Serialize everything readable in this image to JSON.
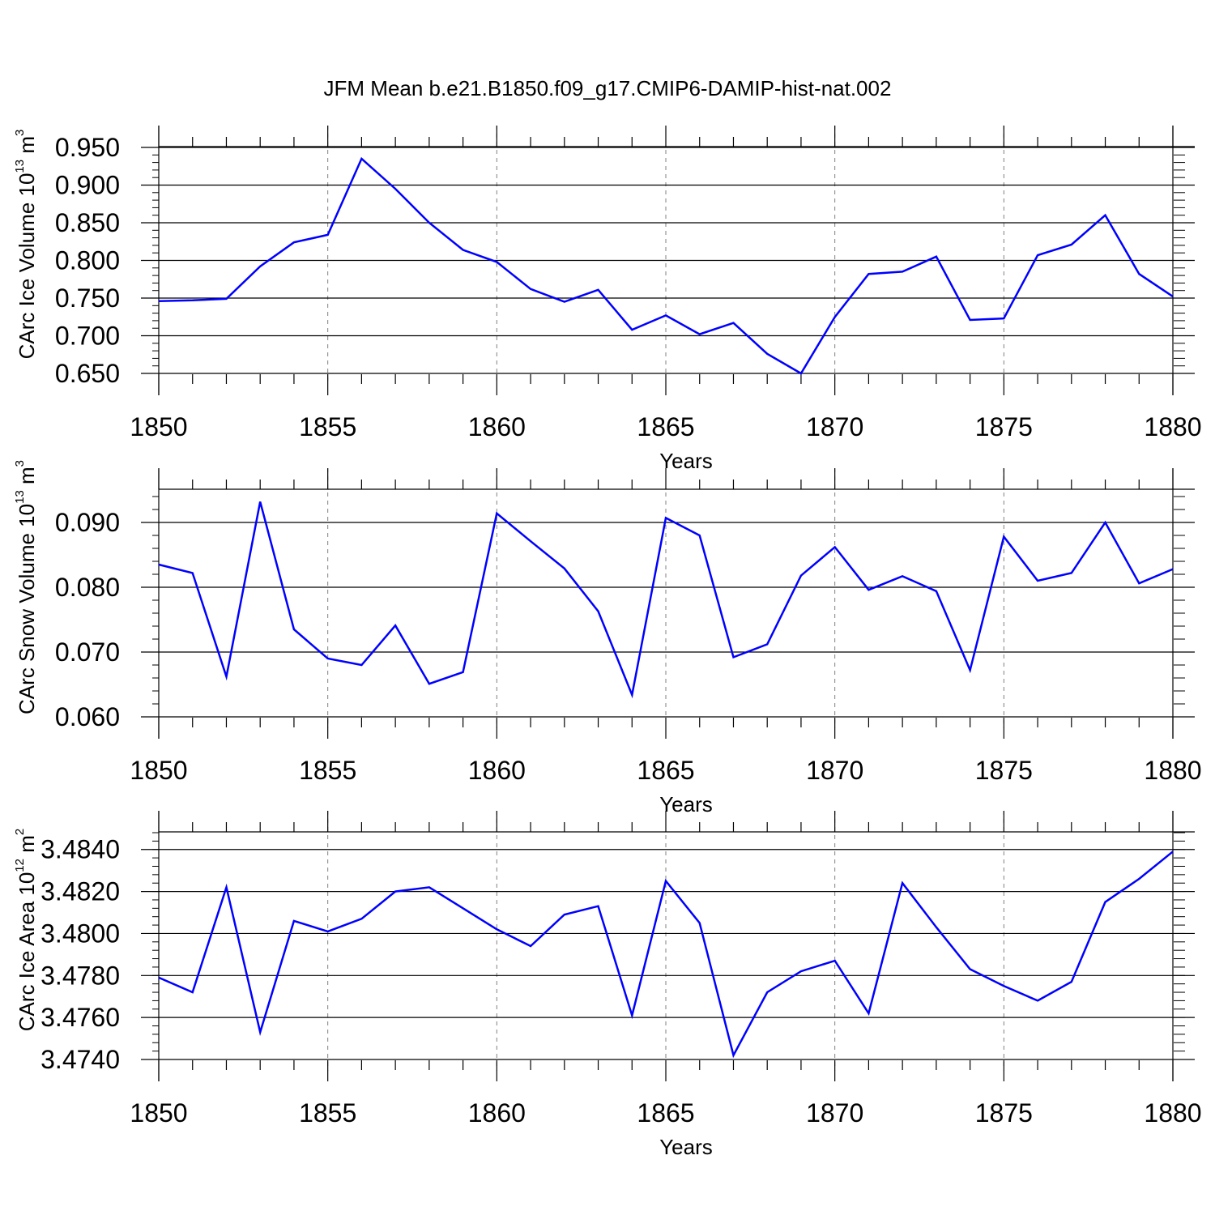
{
  "title": "JFM Mean b.e21.B1850.f09_g17.CMIP6-DAMIP-hist-nat.002",
  "colors": {
    "line": "#0000ff",
    "axis": "#000000",
    "grid": "#808080"
  },
  "chart_data": [
    {
      "type": "line",
      "name": "ice-volume",
      "ylabel": "CArc Ice Volume 10",
      "ylabel_exp": "13",
      "ylabel_unit": " m",
      "ylabel_unit_exp": "3",
      "xlabel": "Years",
      "xlim": [
        1850,
        1880
      ],
      "ylim": [
        0.65,
        0.95
      ],
      "yticks": [
        "0.650",
        "0.700",
        "0.750",
        "0.800",
        "0.850",
        "0.900",
        "0.950"
      ],
      "ytick_values": [
        0.65,
        0.7,
        0.75,
        0.8,
        0.85,
        0.9,
        0.95
      ],
      "xticks": [
        "1850",
        "1855",
        "1860",
        "1865",
        "1870",
        "1875",
        "1880"
      ],
      "xtick_values": [
        1850,
        1855,
        1860,
        1865,
        1870,
        1875,
        1880
      ],
      "x": [
        1850,
        1851,
        1852,
        1853,
        1854,
        1855,
        1856,
        1857,
        1858,
        1859,
        1860,
        1861,
        1862,
        1863,
        1864,
        1865,
        1866,
        1867,
        1868,
        1869,
        1870,
        1871,
        1872,
        1873,
        1874,
        1875,
        1876,
        1877,
        1878,
        1879,
        1880
      ],
      "values": [
        0.746,
        0.747,
        0.749,
        0.792,
        0.824,
        0.834,
        0.935,
        0.895,
        0.85,
        0.814,
        0.798,
        0.762,
        0.745,
        0.761,
        0.708,
        0.727,
        0.702,
        0.717,
        0.676,
        0.65,
        0.725,
        0.782,
        0.785,
        0.805,
        0.721,
        0.723,
        0.807,
        0.821,
        0.86,
        0.782,
        0.752
      ]
    },
    {
      "type": "line",
      "name": "snow-volume",
      "ylabel": "CArc Snow Volume 10",
      "ylabel_exp": "13",
      "ylabel_unit": " m",
      "ylabel_unit_exp": "3",
      "xlabel": "Years",
      "xlim": [
        1850,
        1880
      ],
      "ylim": [
        0.06,
        0.095
      ],
      "yticks": [
        "0.060",
        "0.070",
        "0.080",
        "0.090"
      ],
      "ytick_values": [
        0.06,
        0.07,
        0.08,
        0.09
      ],
      "xticks": [
        "1850",
        "1855",
        "1860",
        "1865",
        "1870",
        "1875",
        "1880"
      ],
      "xtick_values": [
        1850,
        1855,
        1860,
        1865,
        1870,
        1875,
        1880
      ],
      "x": [
        1850,
        1851,
        1852,
        1853,
        1854,
        1855,
        1856,
        1857,
        1858,
        1859,
        1860,
        1861,
        1862,
        1863,
        1864,
        1865,
        1866,
        1867,
        1868,
        1869,
        1870,
        1871,
        1872,
        1873,
        1874,
        1875,
        1876,
        1877,
        1878,
        1879,
        1880
      ],
      "values": [
        0.0835,
        0.0822,
        0.0662,
        0.0932,
        0.0735,
        0.069,
        0.068,
        0.0741,
        0.0651,
        0.0669,
        0.0914,
        0.0871,
        0.0829,
        0.0763,
        0.0634,
        0.0907,
        0.088,
        0.0692,
        0.0712,
        0.0818,
        0.0862,
        0.0796,
        0.0817,
        0.0794,
        0.0672,
        0.0878,
        0.081,
        0.0822,
        0.09,
        0.0806,
        0.0828
      ]
    },
    {
      "type": "line",
      "name": "ice-area",
      "ylabel": "CArc Ice Area 10",
      "ylabel_exp": "12",
      "ylabel_unit": " m",
      "ylabel_unit_exp": "2",
      "xlabel": "Years",
      "xlim": [
        1850,
        1880
      ],
      "ylim": [
        3.474,
        3.4848
      ],
      "yticks": [
        "3.4740",
        "3.4760",
        "3.4780",
        "3.4800",
        "3.4820",
        "3.4840"
      ],
      "ytick_values": [
        3.474,
        3.476,
        3.478,
        3.48,
        3.482,
        3.484
      ],
      "xticks": [
        "1850",
        "1855",
        "1860",
        "1865",
        "1870",
        "1875",
        "1880"
      ],
      "xtick_values": [
        1850,
        1855,
        1860,
        1865,
        1870,
        1875,
        1880
      ],
      "x": [
        1850,
        1851,
        1852,
        1853,
        1854,
        1855,
        1856,
        1857,
        1858,
        1859,
        1860,
        1861,
        1862,
        1863,
        1864,
        1865,
        1866,
        1867,
        1868,
        1869,
        1870,
        1871,
        1872,
        1873,
        1874,
        1875,
        1876,
        1877,
        1878,
        1879,
        1880
      ],
      "values": [
        3.4779,
        3.4772,
        3.4822,
        3.4753,
        3.4806,
        3.4801,
        3.4807,
        3.482,
        3.4822,
        3.4812,
        3.4802,
        3.4794,
        3.4809,
        3.4813,
        3.4761,
        3.4825,
        3.4805,
        3.4742,
        3.4772,
        3.4782,
        3.4787,
        3.4762,
        3.4824,
        3.4803,
        3.4783,
        3.4775,
        3.4768,
        3.4777,
        3.4815,
        3.4826,
        3.4839
      ]
    }
  ]
}
